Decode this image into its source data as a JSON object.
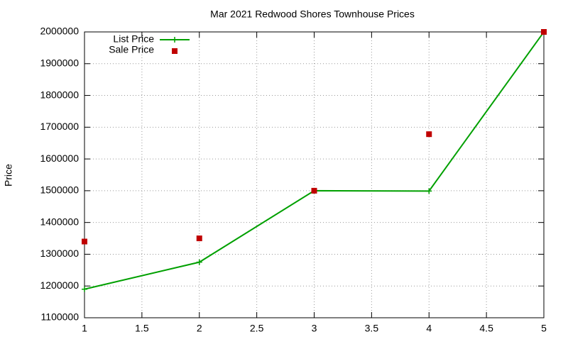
{
  "chart_data": {
    "type": "line",
    "title": "Mar 2021 Redwood Shores Townhouse Prices",
    "y_label": "Price",
    "x": [
      1,
      2,
      3,
      4,
      5
    ],
    "series": [
      {
        "name": "List Price",
        "color": "#00a000",
        "line": true,
        "marker": "plus",
        "values": [
          1190000,
          1275000,
          1500000,
          1499000,
          2000000
        ]
      },
      {
        "name": "Sale Price",
        "color": "#c00000",
        "line": false,
        "marker": "square",
        "values": [
          1340000,
          1350000,
          1500000,
          1678000,
          2000000
        ]
      }
    ],
    "xlim": [
      1,
      5
    ],
    "xticks": [
      1,
      1.5,
      2,
      2.5,
      3,
      3.5,
      4,
      4.5,
      5
    ],
    "ylim": [
      1100000,
      2000000
    ],
    "yticks": [
      1100000,
      1200000,
      1300000,
      1400000,
      1500000,
      1600000,
      1700000,
      1800000,
      1900000,
      2000000
    ],
    "grid": true,
    "legend": "top-left"
  }
}
